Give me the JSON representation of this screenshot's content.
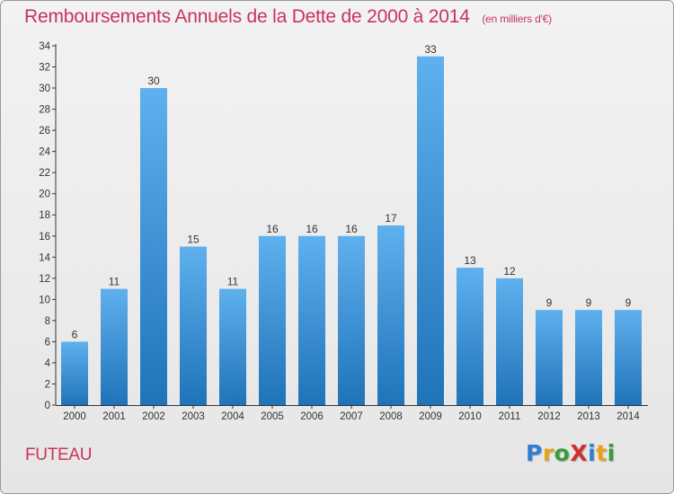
{
  "header": {
    "title": "Remboursements Annuels de la Dette de 2000 à 2014",
    "unit": "(en milliers d'€)"
  },
  "footer": {
    "commune": "FUTEAU",
    "logo_letters": [
      {
        "char": "P",
        "color": "#2e7fd0"
      },
      {
        "char": "r",
        "color": "#e8a21a"
      },
      {
        "char": "o",
        "color": "#3a9b3a"
      },
      {
        "char": "X",
        "color": "#d0302e"
      },
      {
        "char": "i",
        "color": "#2e7fd0"
      },
      {
        "char": "t",
        "color": "#e8a21a"
      },
      {
        "char": "i",
        "color": "#3a9b3a"
      }
    ]
  },
  "colors": {
    "bar_top": "#5fb0ee",
    "bar_bottom": "#1f73b8",
    "accent": "#c8345a"
  },
  "chart_data": {
    "type": "bar",
    "categories": [
      "2000",
      "2001",
      "2002",
      "2003",
      "2004",
      "2005",
      "2006",
      "2007",
      "2008",
      "2009",
      "2010",
      "2011",
      "2012",
      "2013",
      "2014"
    ],
    "values": [
      6,
      11,
      30,
      15,
      11,
      16,
      16,
      16,
      17,
      33,
      13,
      12,
      9,
      9,
      9
    ],
    "ylim": [
      0,
      34
    ],
    "yticks": [
      0,
      2,
      4,
      6,
      8,
      10,
      12,
      14,
      16,
      18,
      20,
      22,
      24,
      26,
      28,
      30,
      32,
      34
    ],
    "grid": false,
    "legend": "none"
  }
}
